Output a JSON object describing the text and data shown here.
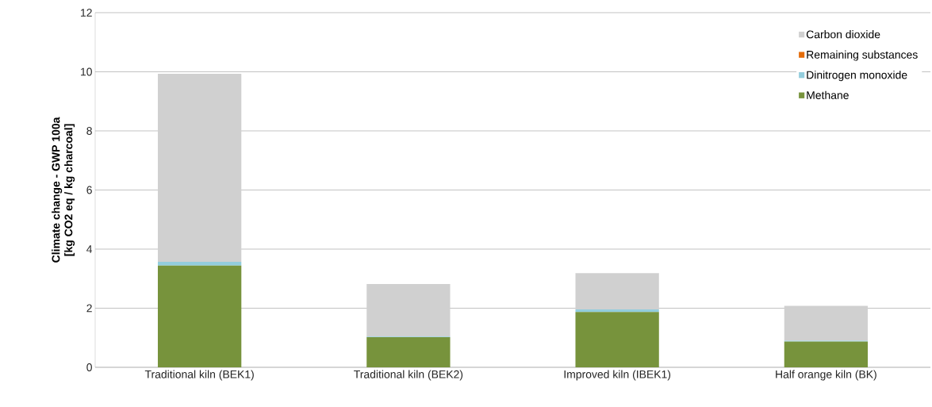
{
  "chart_data": {
    "type": "bar",
    "stacked": true,
    "ylabel": "Climate change - GWP 100a\n[kg CO2 eq / kg charcoal]",
    "categories": [
      "Traditional kiln (BEK1)",
      "Traditional kiln (BEK2)",
      "Improved kiln (IBEK1)",
      "Half orange kiln (BK)"
    ],
    "series": [
      {
        "name": "Methane",
        "color": "#77933c",
        "values": [
          3.44,
          1.02,
          1.87,
          0.87
        ]
      },
      {
        "name": "Dinitrogen monoxide",
        "color": "#93cddd",
        "values": [
          0.13,
          0.02,
          0.09,
          0.03
        ]
      },
      {
        "name": "Remaining substances",
        "color": "#e46c0a",
        "values": [
          0,
          0,
          0,
          0
        ]
      },
      {
        "name": "Carbon dioxide",
        "color": "#d0d0d0",
        "values": [
          6.36,
          1.78,
          1.23,
          1.18
        ]
      }
    ],
    "ylim": [
      0,
      12
    ],
    "yticks": [
      0,
      2,
      4,
      6,
      8,
      10,
      12
    ],
    "grid": "y",
    "legend": "top right"
  }
}
